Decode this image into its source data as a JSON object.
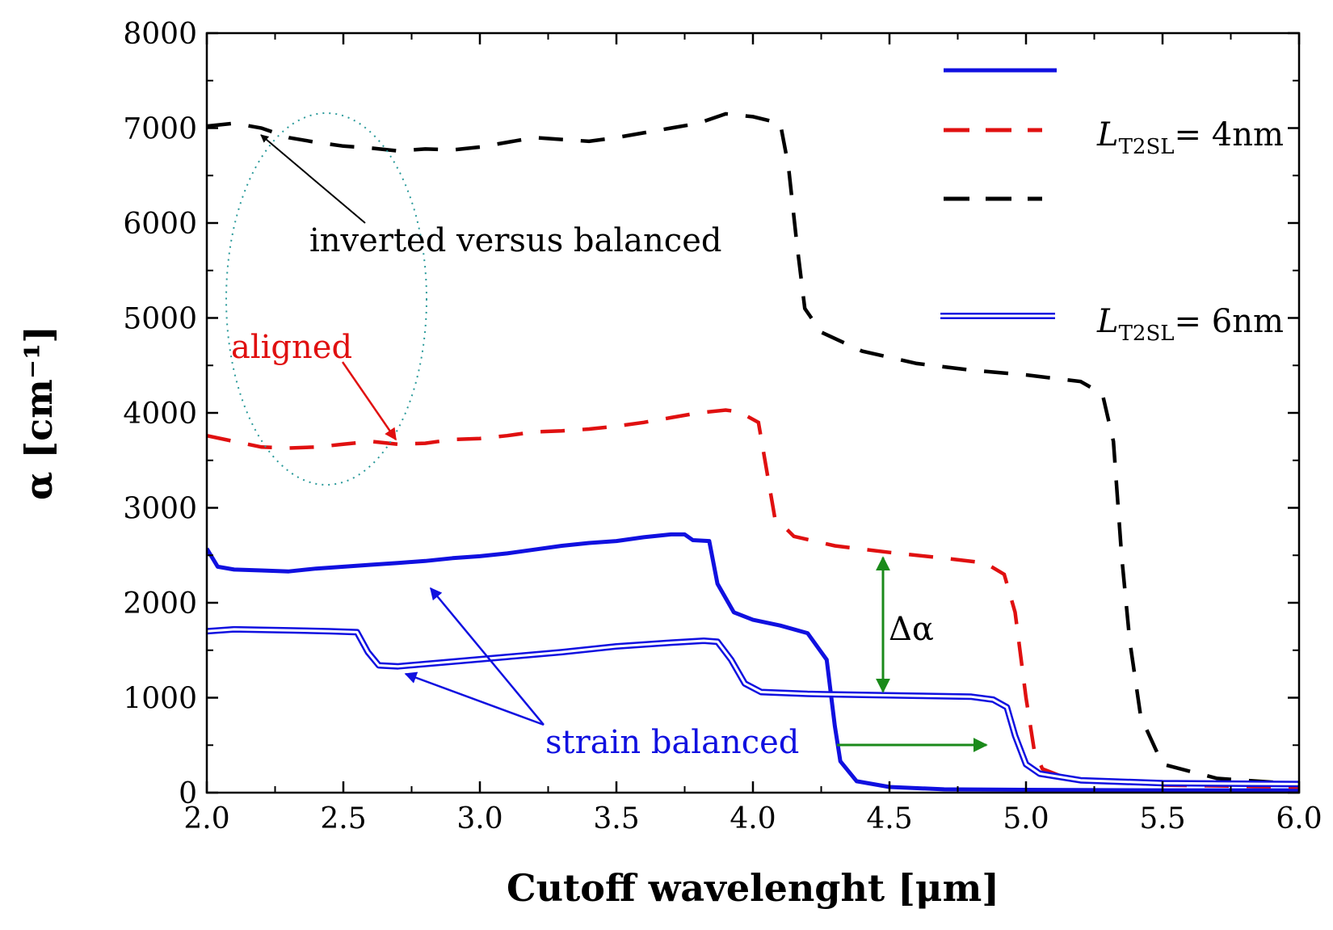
{
  "chart_data": {
    "type": "line",
    "xlabel": "Cutoff wavelenght [μm]",
    "ylabel": "α [cm⁻¹]",
    "xlim": [
      2.0,
      6.0
    ],
    "ylim": [
      0,
      8000
    ],
    "xticks": [
      "2.0",
      "2.5",
      "3.0",
      "3.5",
      "4.0",
      "4.5",
      "5.0",
      "5.5",
      "6.0"
    ],
    "yticks": [
      "0",
      "1000",
      "2000",
      "3000",
      "4000",
      "5000",
      "6000",
      "7000",
      "8000"
    ],
    "grid": false,
    "legend_position": "top-right",
    "legend": {
      "label_a": "L",
      "label_a_sub": "T2SL",
      "label_a_rest": "= 4nm",
      "label_b": "L",
      "label_b_sub": "T2SL",
      "label_b_rest": "= 6nm"
    },
    "series": [
      {
        "style": "solid",
        "color": "#1010e0",
        "points": [
          [
            2.0,
            2570
          ],
          [
            2.04,
            2380
          ],
          [
            2.1,
            2350
          ],
          [
            2.2,
            2340
          ],
          [
            2.3,
            2330
          ],
          [
            2.4,
            2360
          ],
          [
            2.5,
            2380
          ],
          [
            2.6,
            2400
          ],
          [
            2.7,
            2420
          ],
          [
            2.8,
            2440
          ],
          [
            2.9,
            2470
          ],
          [
            3.0,
            2490
          ],
          [
            3.1,
            2520
          ],
          [
            3.2,
            2560
          ],
          [
            3.3,
            2600
          ],
          [
            3.4,
            2630
          ],
          [
            3.5,
            2650
          ],
          [
            3.6,
            2690
          ],
          [
            3.7,
            2720
          ],
          [
            3.75,
            2720
          ],
          [
            3.78,
            2660
          ],
          [
            3.84,
            2650
          ],
          [
            3.87,
            2200
          ],
          [
            3.93,
            1900
          ],
          [
            4.0,
            1820
          ],
          [
            4.1,
            1760
          ],
          [
            4.2,
            1680
          ],
          [
            4.27,
            1400
          ],
          [
            4.3,
            700
          ],
          [
            4.32,
            330
          ],
          [
            4.38,
            120
          ],
          [
            4.5,
            60
          ],
          [
            4.7,
            35
          ],
          [
            5.0,
            30
          ],
          [
            5.5,
            25
          ],
          [
            6.0,
            25
          ]
        ]
      },
      {
        "style": "dashed",
        "color": "#e01010",
        "points": [
          [
            2.0,
            3760
          ],
          [
            2.1,
            3700
          ],
          [
            2.2,
            3640
          ],
          [
            2.3,
            3630
          ],
          [
            2.4,
            3640
          ],
          [
            2.5,
            3670
          ],
          [
            2.6,
            3700
          ],
          [
            2.7,
            3670
          ],
          [
            2.8,
            3680
          ],
          [
            2.9,
            3720
          ],
          [
            3.0,
            3730
          ],
          [
            3.1,
            3760
          ],
          [
            3.2,
            3800
          ],
          [
            3.3,
            3810
          ],
          [
            3.4,
            3830
          ],
          [
            3.5,
            3860
          ],
          [
            3.6,
            3900
          ],
          [
            3.7,
            3950
          ],
          [
            3.8,
            4000
          ],
          [
            3.9,
            4030
          ],
          [
            3.95,
            4010
          ],
          [
            4.02,
            3900
          ],
          [
            4.05,
            3400
          ],
          [
            4.08,
            2900
          ],
          [
            4.15,
            2700
          ],
          [
            4.3,
            2600
          ],
          [
            4.5,
            2530
          ],
          [
            4.7,
            2470
          ],
          [
            4.85,
            2420
          ],
          [
            4.92,
            2300
          ],
          [
            4.96,
            1900
          ],
          [
            5.0,
            1000
          ],
          [
            5.03,
            450
          ],
          [
            5.06,
            250
          ],
          [
            5.15,
            150
          ],
          [
            5.5,
            80
          ],
          [
            6.0,
            60
          ]
        ]
      },
      {
        "style": "dashed",
        "color": "#000000",
        "points": [
          [
            2.0,
            7020
          ],
          [
            2.1,
            7050
          ],
          [
            2.2,
            7000
          ],
          [
            2.3,
            6900
          ],
          [
            2.4,
            6850
          ],
          [
            2.5,
            6810
          ],
          [
            2.6,
            6790
          ],
          [
            2.7,
            6760
          ],
          [
            2.8,
            6780
          ],
          [
            2.9,
            6770
          ],
          [
            3.0,
            6800
          ],
          [
            3.1,
            6850
          ],
          [
            3.2,
            6900
          ],
          [
            3.3,
            6880
          ],
          [
            3.4,
            6860
          ],
          [
            3.5,
            6900
          ],
          [
            3.6,
            6950
          ],
          [
            3.7,
            7000
          ],
          [
            3.8,
            7050
          ],
          [
            3.9,
            7150
          ],
          [
            4.0,
            7120
          ],
          [
            4.1,
            7050
          ],
          [
            4.13,
            6600
          ],
          [
            4.16,
            5800
          ],
          [
            4.19,
            5100
          ],
          [
            4.25,
            4850
          ],
          [
            4.4,
            4650
          ],
          [
            4.6,
            4520
          ],
          [
            4.8,
            4450
          ],
          [
            5.0,
            4400
          ],
          [
            5.2,
            4330
          ],
          [
            5.28,
            4200
          ],
          [
            5.32,
            3700
          ],
          [
            5.35,
            2500
          ],
          [
            5.38,
            1600
          ],
          [
            5.42,
            800
          ],
          [
            5.5,
            300
          ],
          [
            5.7,
            150
          ],
          [
            6.0,
            90
          ]
        ]
      },
      {
        "style": "double",
        "color": "#1010e0",
        "points": [
          [
            2.0,
            1700
          ],
          [
            2.1,
            1720
          ],
          [
            2.3,
            1710
          ],
          [
            2.45,
            1700
          ],
          [
            2.55,
            1690
          ],
          [
            2.59,
            1480
          ],
          [
            2.63,
            1340
          ],
          [
            2.7,
            1330
          ],
          [
            2.9,
            1380
          ],
          [
            3.1,
            1430
          ],
          [
            3.3,
            1480
          ],
          [
            3.5,
            1540
          ],
          [
            3.7,
            1580
          ],
          [
            3.82,
            1600
          ],
          [
            3.87,
            1590
          ],
          [
            3.92,
            1400
          ],
          [
            3.97,
            1150
          ],
          [
            4.03,
            1060
          ],
          [
            4.2,
            1040
          ],
          [
            4.4,
            1030
          ],
          [
            4.6,
            1020
          ],
          [
            4.8,
            1010
          ],
          [
            4.88,
            980
          ],
          [
            4.93,
            900
          ],
          [
            4.96,
            600
          ],
          [
            5.0,
            300
          ],
          [
            5.05,
            200
          ],
          [
            5.2,
            130
          ],
          [
            5.5,
            100
          ],
          [
            6.0,
            90
          ]
        ]
      }
    ],
    "annotations": {
      "inverted": "inverted versus balanced",
      "aligned": "aligned",
      "strain": "strain balanced",
      "delta": "Δα"
    }
  }
}
